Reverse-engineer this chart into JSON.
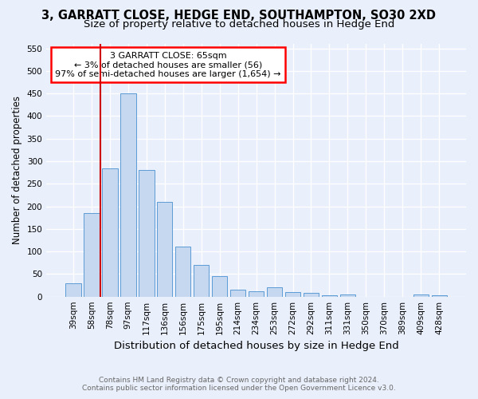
{
  "title": "3, GARRATT CLOSE, HEDGE END, SOUTHAMPTON, SO30 2XD",
  "subtitle": "Size of property relative to detached houses in Hedge End",
  "xlabel": "Distribution of detached houses by size in Hedge End",
  "ylabel": "Number of detached properties",
  "categories": [
    "39sqm",
    "58sqm",
    "78sqm",
    "97sqm",
    "117sqm",
    "136sqm",
    "156sqm",
    "175sqm",
    "195sqm",
    "214sqm",
    "234sqm",
    "253sqm",
    "272sqm",
    "292sqm",
    "311sqm",
    "331sqm",
    "350sqm",
    "370sqm",
    "389sqm",
    "409sqm",
    "428sqm"
  ],
  "values": [
    30,
    185,
    285,
    450,
    280,
    210,
    110,
    70,
    45,
    15,
    12,
    20,
    10,
    8,
    3,
    5,
    0,
    0,
    0,
    5,
    3
  ],
  "bar_color": "#c5d8f0",
  "bar_edge_color": "#5b9bd5",
  "red_line_x": 1.5,
  "annotation_text": "3 GARRATT CLOSE: 65sqm\n← 3% of detached houses are smaller (56)\n97% of semi-detached houses are larger (1,654) →",
  "annotation_box_color": "white",
  "annotation_box_edge_color": "red",
  "vline_color": "#cc0000",
  "ylim": [
    0,
    560
  ],
  "yticks": [
    0,
    50,
    100,
    150,
    200,
    250,
    300,
    350,
    400,
    450,
    500,
    550
  ],
  "bg_color": "#eaf0fb",
  "plot_bg_color": "#eaf0fb",
  "footer1": "Contains HM Land Registry data © Crown copyright and database right 2024.",
  "footer2": "Contains public sector information licensed under the Open Government Licence v3.0.",
  "title_fontsize": 10.5,
  "subtitle_fontsize": 9.5,
  "xlabel_fontsize": 9.5,
  "ylabel_fontsize": 8.5,
  "tick_fontsize": 7.5,
  "annotation_fontsize": 8,
  "footer_fontsize": 6.5
}
